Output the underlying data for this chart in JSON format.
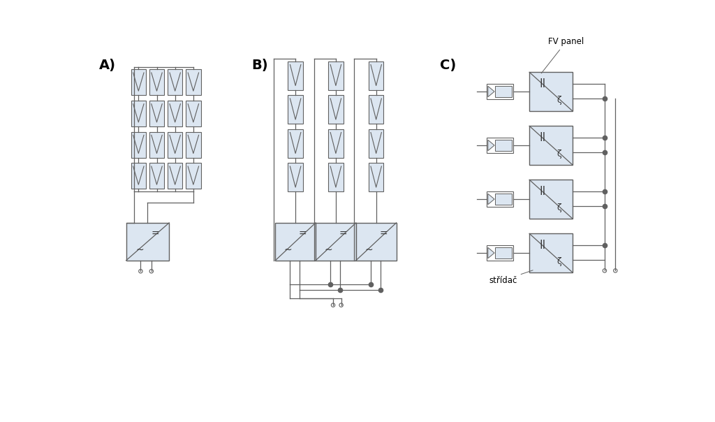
{
  "bg_color": "#ffffff",
  "line_color": "#606060",
  "fill_color": "#dce6f1",
  "label_A": "A)",
  "label_B": "B)",
  "label_C": "C)",
  "label_fv": "FV panel",
  "label_stridac": "střídač"
}
